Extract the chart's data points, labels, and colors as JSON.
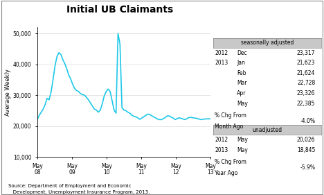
{
  "title": "Initial UB Claimants",
  "ylabel": "Average Weekly",
  "ylim": [
    10000,
    52000
  ],
  "yticks": [
    10000,
    20000,
    30000,
    40000,
    50000
  ],
  "ytick_labels": [
    "10,000",
    "20,000",
    "30,000",
    "40,000",
    "50,000"
  ],
  "line_color": "#1EC8E8",
  "line_width": 1.2,
  "xtick_labels": [
    "May\n08",
    "May\n09",
    "May\n10",
    "May\n11",
    "May\n12",
    "May\n13"
  ],
  "source_line1": "Source: Department of Employment and Economic",
  "source_line2": "   Development, Unemployment Insurance Program, 2013.",
  "seasonally_adjusted_label": "seasonally adjusted",
  "sa_data": [
    [
      "2012",
      "Dec",
      "23,317"
    ],
    [
      "2013",
      "Jan",
      "21,623"
    ],
    [
      "",
      "Feb",
      "21,624"
    ],
    [
      "",
      "Mar",
      "22,728"
    ],
    [
      "",
      "Apr",
      "23,326"
    ],
    [
      "",
      "May",
      "22,385"
    ]
  ],
  "sa_pct_label1": "% Chg From",
  "sa_pct_label2": "Month Ago",
  "sa_pct_value": "-4.0%",
  "unadjusted_label": "unadjusted",
  "ua_data": [
    [
      "2012",
      "May",
      "20,026"
    ],
    [
      "2013",
      "May",
      "18,845"
    ]
  ],
  "ua_pct_label1": "% Chg From",
  "ua_pct_label2": "Year Ago",
  "ua_pct_value": "-5.9%",
  "series": [
    22000,
    23500,
    24500,
    25500,
    27000,
    29000,
    28500,
    31000,
    35000,
    39500,
    42500,
    43800,
    43200,
    41500,
    40200,
    38500,
    36500,
    35200,
    33500,
    32200,
    31500,
    31200,
    30500,
    30200,
    30000,
    29300,
    28500,
    27500,
    26500,
    25500,
    25200,
    24500,
    25200,
    27200,
    29800,
    31200,
    32000,
    31200,
    28200,
    25200,
    24200,
    50000,
    46500,
    26000,
    25200,
    25000,
    24500,
    24200,
    23500,
    23200,
    23000,
    22700,
    22200,
    22600,
    23000,
    23400,
    23900,
    23800,
    23400,
    23000,
    22700,
    22300,
    22100,
    22100,
    22400,
    22800,
    23300,
    23300,
    22900,
    22600,
    22100,
    22400,
    22700,
    22500,
    22300,
    22100,
    22400,
    22800,
    22800,
    22700,
    22600,
    22500,
    22300,
    22100,
    22200,
    22300,
    22350,
    22320,
    22385
  ]
}
